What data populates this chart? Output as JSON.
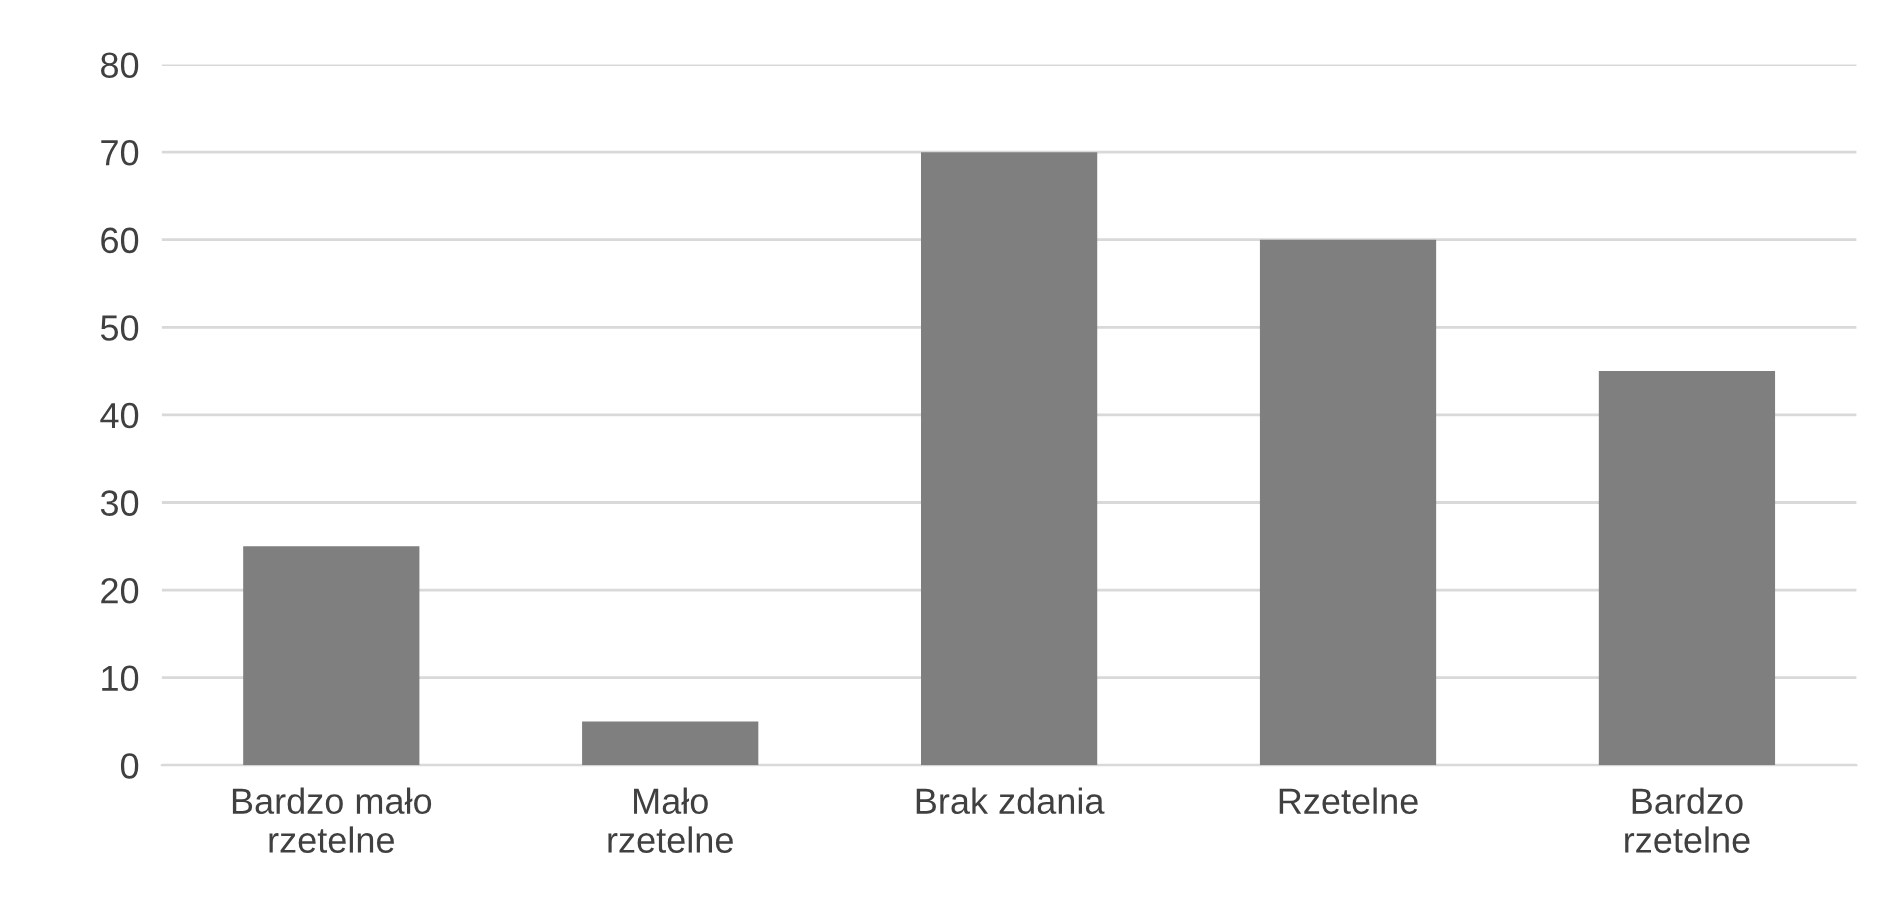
{
  "chart_data": {
    "type": "bar",
    "categories": [
      "Bardzo mało\nrzetelne",
      "Mało\nrzetelne",
      "Brak zdania",
      "Rzetelne",
      "Bardzo\nrzetelne"
    ],
    "values": [
      25,
      5,
      70,
      60,
      45
    ],
    "color": "#7f7f7f",
    "ylim": [
      0,
      80
    ],
    "yticks": [
      0,
      10,
      20,
      30,
      40,
      50,
      60,
      70,
      80
    ],
    "grid": "y"
  }
}
